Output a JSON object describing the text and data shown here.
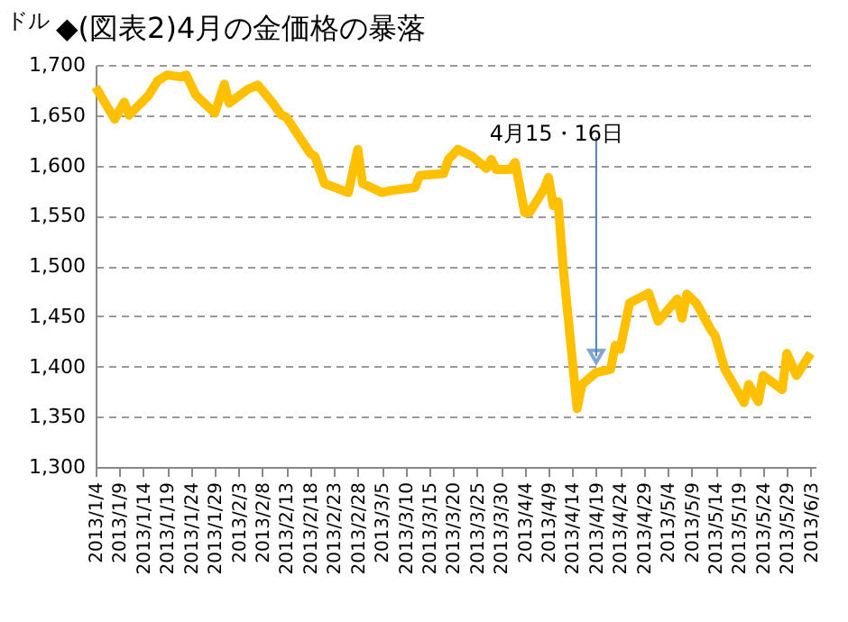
{
  "chart_data": {
    "type": "line",
    "title": "◆(図表2)4月の金価格の暴落",
    "ylabel": "ドル",
    "x": [
      "2013-01-04",
      "2013-01-08",
      "2013-01-10",
      "2013-01-11",
      "2013-01-15",
      "2013-01-17",
      "2013-01-19",
      "2013-01-22",
      "2013-01-23",
      "2013-01-25",
      "2013-01-29",
      "2013-01-31",
      "2013-02-01",
      "2013-02-05",
      "2013-02-07",
      "2013-02-10",
      "2013-02-12",
      "2013-02-13",
      "2013-02-18",
      "2013-02-19",
      "2013-02-21",
      "2013-02-26",
      "2013-02-28",
      "2013-03-01",
      "2013-03-05",
      "2013-03-07",
      "2013-03-12",
      "2013-03-13",
      "2013-03-18",
      "2013-03-19",
      "2013-03-21",
      "2013-03-24",
      "2013-03-27",
      "2013-03-28",
      "2013-03-29",
      "2013-04-01",
      "2013-04-02",
      "2013-04-04",
      "2013-04-05",
      "2013-04-08",
      "2013-04-09",
      "2013-04-10",
      "2013-04-11",
      "2013-04-12",
      "2013-04-15",
      "2013-04-16",
      "2013-04-19",
      "2013-04-22",
      "2013-04-23",
      "2013-04-24",
      "2013-04-26",
      "2013-04-30",
      "2013-05-02",
      "2013-05-06",
      "2013-05-07",
      "2013-05-08",
      "2013-05-10",
      "2013-05-13",
      "2013-05-14",
      "2013-05-16",
      "2013-05-20",
      "2013-05-21",
      "2013-05-23",
      "2013-05-24",
      "2013-05-28",
      "2013-05-29",
      "2013-05-31",
      "2013-06-03"
    ],
    "series": [
      {
        "color": "#ffc000",
        "values": [
          1678,
          1646,
          1663,
          1650,
          1669,
          1684,
          1690,
          1688,
          1690,
          1670,
          1652,
          1681,
          1662,
          1676,
          1680,
          1663,
          1650,
          1648,
          1612,
          1609,
          1582,
          1573,
          1616,
          1582,
          1573,
          1575,
          1578,
          1590,
          1592,
          1606,
          1616,
          1609,
          1597,
          1606,
          1596,
          1596,
          1603,
          1553,
          1553,
          1576,
          1588,
          1560,
          1564,
          1502,
          1358,
          1382,
          1394,
          1397,
          1421,
          1417,
          1463,
          1473,
          1445,
          1467,
          1448,
          1472,
          1463,
          1437,
          1430,
          1397,
          1364,
          1382,
          1365,
          1391,
          1377,
          1413,
          1391,
          1413
        ]
      }
    ],
    "ylim": [
      1300,
      1700
    ],
    "yticks": [
      {
        "value": 1300,
        "label": "1,300"
      },
      {
        "value": 1350,
        "label": "1,350"
      },
      {
        "value": 1400,
        "label": "1,400"
      },
      {
        "value": 1450,
        "label": "1,450"
      },
      {
        "value": 1500,
        "label": "1,500"
      },
      {
        "value": 1550,
        "label": "1,550"
      },
      {
        "value": 1600,
        "label": "1,600"
      },
      {
        "value": 1650,
        "label": "1,650"
      },
      {
        "value": 1700,
        "label": "1,700"
      }
    ],
    "xlim": [
      "2013-01-04",
      "2013-06-04"
    ],
    "xticks": [
      {
        "value": "2013-01-04",
        "label": "2013/1/4"
      },
      {
        "value": "2013-01-09",
        "label": "2013/1/9"
      },
      {
        "value": "2013-01-14",
        "label": "2013/1/14"
      },
      {
        "value": "2013-01-19",
        "label": "2013/1/19"
      },
      {
        "value": "2013-01-24",
        "label": "2013/1/24"
      },
      {
        "value": "2013-01-29",
        "label": "2013/1/29"
      },
      {
        "value": "2013-02-03",
        "label": "2013/2/3"
      },
      {
        "value": "2013-02-08",
        "label": "2013/2/8"
      },
      {
        "value": "2013-02-13",
        "label": "2013/2/13"
      },
      {
        "value": "2013-02-18",
        "label": "2013/2/18"
      },
      {
        "value": "2013-02-23",
        "label": "2013/2/23"
      },
      {
        "value": "2013-02-28",
        "label": "2013/2/28"
      },
      {
        "value": "2013-03-05",
        "label": "2013/3/5"
      },
      {
        "value": "2013-03-10",
        "label": "2013/3/10"
      },
      {
        "value": "2013-03-15",
        "label": "2013/3/15"
      },
      {
        "value": "2013-03-20",
        "label": "2013/3/20"
      },
      {
        "value": "2013-03-25",
        "label": "2013/3/25"
      },
      {
        "value": "2013-03-30",
        "label": "2013/3/30"
      },
      {
        "value": "2013-04-04",
        "label": "2013/4/4"
      },
      {
        "value": "2013-04-09",
        "label": "2013/4/9"
      },
      {
        "value": "2013-04-14",
        "label": "2013/4/14"
      },
      {
        "value": "2013-04-19",
        "label": "2013/4/19"
      },
      {
        "value": "2013-04-24",
        "label": "2013/4/24"
      },
      {
        "value": "2013-04-29",
        "label": "2013/4/29"
      },
      {
        "value": "2013-05-04",
        "label": "2013/5/4"
      },
      {
        "value": "2013-05-09",
        "label": "2013/5/9"
      },
      {
        "value": "2013-05-14",
        "label": "2013/5/14"
      },
      {
        "value": "2013-05-19",
        "label": "2013/5/19"
      },
      {
        "value": "2013-05-24",
        "label": "2013/5/24"
      },
      {
        "value": "2013-05-29",
        "label": "2013/5/29"
      },
      {
        "value": "2013-06-03",
        "label": "2013/6/3"
      }
    ],
    "grid": "y",
    "marker": "none",
    "line_style": "solid",
    "annotations": [
      {
        "text": "4月15・16日",
        "x": "2013-04-19",
        "y": 1410
      }
    ]
  }
}
